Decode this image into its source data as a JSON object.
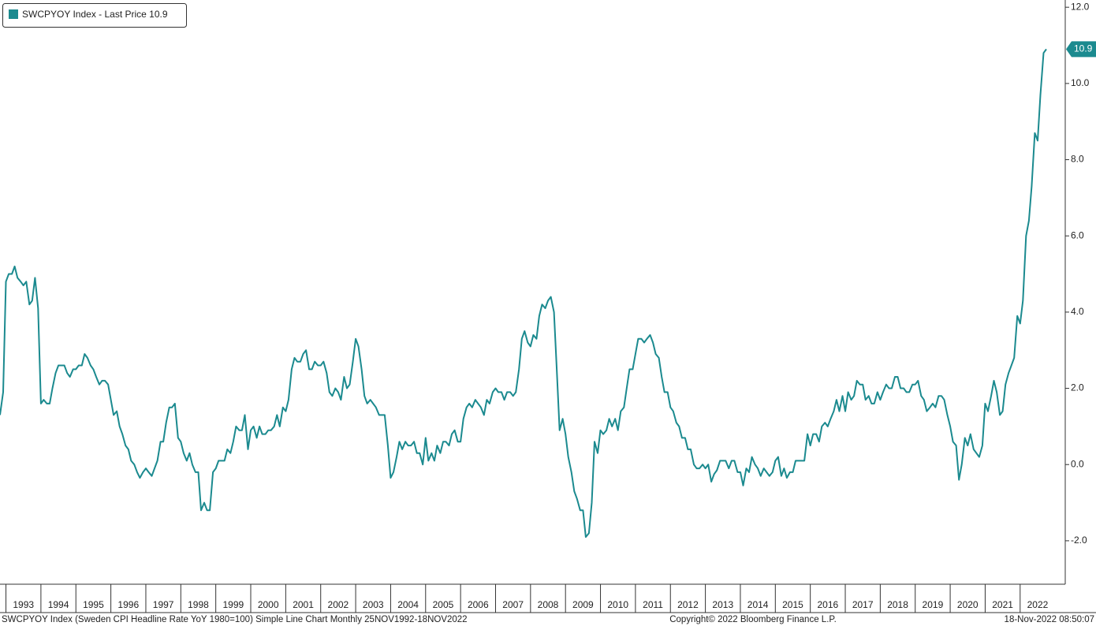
{
  "chart_data": {
    "type": "line",
    "series": [
      {
        "name": "SWCPYOY Index - Last Price 10.9",
        "color": "#1b8a8f",
        "x": [
          1992.83,
          1992.92,
          1993,
          1993.08,
          1993.17,
          1993.25,
          1993.33,
          1993.42,
          1993.5,
          1993.58,
          1993.67,
          1993.75,
          1993.83,
          1993.92,
          1994,
          1994.08,
          1994.17,
          1994.25,
          1994.33,
          1994.42,
          1994.5,
          1994.58,
          1994.67,
          1994.75,
          1994.83,
          1994.92,
          1995,
          1995.08,
          1995.17,
          1995.25,
          1995.33,
          1995.42,
          1995.5,
          1995.58,
          1995.67,
          1995.75,
          1995.83,
          1995.92,
          1996,
          1996.08,
          1996.17,
          1996.25,
          1996.33,
          1996.42,
          1996.5,
          1996.58,
          1996.67,
          1996.75,
          1996.83,
          1996.92,
          1997,
          1997.08,
          1997.17,
          1997.25,
          1997.33,
          1997.42,
          1997.5,
          1997.58,
          1997.67,
          1997.75,
          1997.83,
          1997.92,
          1998,
          1998.08,
          1998.17,
          1998.25,
          1998.33,
          1998.42,
          1998.5,
          1998.58,
          1998.67,
          1998.75,
          1998.83,
          1998.92,
          1999,
          1999.08,
          1999.17,
          1999.25,
          1999.33,
          1999.42,
          1999.5,
          1999.58,
          1999.67,
          1999.75,
          1999.83,
          1999.92,
          2000,
          2000.08,
          2000.17,
          2000.25,
          2000.33,
          2000.42,
          2000.5,
          2000.58,
          2000.67,
          2000.75,
          2000.83,
          2000.92,
          2001,
          2001.08,
          2001.17,
          2001.25,
          2001.33,
          2001.42,
          2001.5,
          2001.58,
          2001.67,
          2001.75,
          2001.83,
          2001.92,
          2002,
          2002.08,
          2002.17,
          2002.25,
          2002.33,
          2002.42,
          2002.5,
          2002.58,
          2002.67,
          2002.75,
          2002.83,
          2002.92,
          2003,
          2003.08,
          2003.17,
          2003.25,
          2003.33,
          2003.42,
          2003.5,
          2003.58,
          2003.67,
          2003.75,
          2003.83,
          2003.92,
          2004,
          2004.08,
          2004.17,
          2004.25,
          2004.33,
          2004.42,
          2004.5,
          2004.58,
          2004.67,
          2004.75,
          2004.83,
          2004.92,
          2005,
          2005.08,
          2005.17,
          2005.25,
          2005.33,
          2005.42,
          2005.5,
          2005.58,
          2005.67,
          2005.75,
          2005.83,
          2005.92,
          2006,
          2006.08,
          2006.17,
          2006.25,
          2006.33,
          2006.42,
          2006.5,
          2006.58,
          2006.67,
          2006.75,
          2006.83,
          2006.92,
          2007,
          2007.08,
          2007.17,
          2007.25,
          2007.33,
          2007.42,
          2007.5,
          2007.58,
          2007.67,
          2007.75,
          2007.83,
          2007.92,
          2008,
          2008.08,
          2008.17,
          2008.25,
          2008.33,
          2008.42,
          2008.5,
          2008.58,
          2008.67,
          2008.75,
          2008.83,
          2008.92,
          2009,
          2009.08,
          2009.17,
          2009.25,
          2009.33,
          2009.42,
          2009.5,
          2009.58,
          2009.67,
          2009.75,
          2009.83,
          2009.92,
          2010,
          2010.08,
          2010.17,
          2010.25,
          2010.33,
          2010.42,
          2010.5,
          2010.58,
          2010.67,
          2010.75,
          2010.83,
          2010.92,
          2011,
          2011.08,
          2011.17,
          2011.25,
          2011.33,
          2011.42,
          2011.5,
          2011.58,
          2011.67,
          2011.75,
          2011.83,
          2011.92,
          2012,
          2012.08,
          2012.17,
          2012.25,
          2012.33,
          2012.42,
          2012.5,
          2012.58,
          2012.67,
          2012.75,
          2012.83,
          2012.92,
          2013,
          2013.08,
          2013.17,
          2013.25,
          2013.33,
          2013.42,
          2013.5,
          2013.58,
          2013.67,
          2013.75,
          2013.83,
          2013.92,
          2014,
          2014.08,
          2014.17,
          2014.25,
          2014.33,
          2014.42,
          2014.5,
          2014.58,
          2014.67,
          2014.75,
          2014.83,
          2014.92,
          2015,
          2015.08,
          2015.17,
          2015.25,
          2015.33,
          2015.42,
          2015.5,
          2015.58,
          2015.67,
          2015.75,
          2015.83,
          2015.92,
          2016,
          2016.08,
          2016.17,
          2016.25,
          2016.33,
          2016.42,
          2016.5,
          2016.58,
          2016.67,
          2016.75,
          2016.83,
          2016.92,
          2017,
          2017.08,
          2017.17,
          2017.25,
          2017.33,
          2017.42,
          2017.5,
          2017.58,
          2017.67,
          2017.75,
          2017.83,
          2017.92,
          2018,
          2018.08,
          2018.17,
          2018.25,
          2018.33,
          2018.42,
          2018.5,
          2018.58,
          2018.67,
          2018.75,
          2018.83,
          2018.92,
          2019,
          2019.08,
          2019.17,
          2019.25,
          2019.33,
          2019.42,
          2019.5,
          2019.58,
          2019.67,
          2019.75,
          2019.83,
          2019.92,
          2020,
          2020.08,
          2020.17,
          2020.25,
          2020.33,
          2020.42,
          2020.5,
          2020.58,
          2020.67,
          2020.75,
          2020.83,
          2020.92,
          2021,
          2021.08,
          2021.17,
          2021.25,
          2021.33,
          2021.42,
          2021.5,
          2021.58,
          2021.67,
          2021.75,
          2021.83,
          2021.92,
          2022,
          2022.08,
          2022.17,
          2022.25,
          2022.33,
          2022.42,
          2022.5,
          2022.58,
          2022.67,
          2022.75
        ],
        "values": [
          1.3,
          1.9,
          4.8,
          5.0,
          5.0,
          5.2,
          4.9,
          4.8,
          4.7,
          4.8,
          4.2,
          4.3,
          4.9,
          4.1,
          1.6,
          1.7,
          1.6,
          1.6,
          2.0,
          2.4,
          2.6,
          2.6,
          2.6,
          2.4,
          2.3,
          2.5,
          2.5,
          2.6,
          2.6,
          2.9,
          2.8,
          2.6,
          2.5,
          2.3,
          2.1,
          2.2,
          2.2,
          2.1,
          1.7,
          1.3,
          1.4,
          1.0,
          0.8,
          0.5,
          0.4,
          0.1,
          0.0,
          -0.2,
          -0.35,
          -0.2,
          -0.1,
          -0.2,
          -0.3,
          -0.1,
          0.1,
          0.6,
          0.6,
          1.1,
          1.5,
          1.5,
          1.6,
          0.7,
          0.6,
          0.3,
          0.1,
          0.3,
          0.0,
          -0.2,
          -0.2,
          -1.2,
          -1.0,
          -1.2,
          -1.2,
          -0.2,
          -0.1,
          0.1,
          0.1,
          0.1,
          0.4,
          0.3,
          0.6,
          1.0,
          0.9,
          0.9,
          1.3,
          0.4,
          0.9,
          1.0,
          0.7,
          1.0,
          0.8,
          0.8,
          0.9,
          0.9,
          1.0,
          1.3,
          1.0,
          1.5,
          1.4,
          1.7,
          2.5,
          2.8,
          2.7,
          2.7,
          2.9,
          3.0,
          2.5,
          2.5,
          2.7,
          2.6,
          2.6,
          2.7,
          2.4,
          1.9,
          1.8,
          2.0,
          1.9,
          1.7,
          2.3,
          2.0,
          2.1,
          2.7,
          3.3,
          3.1,
          2.5,
          1.8,
          1.6,
          1.7,
          1.6,
          1.5,
          1.3,
          1.3,
          1.3,
          0.5,
          -0.35,
          -0.2,
          0.2,
          0.6,
          0.4,
          0.6,
          0.5,
          0.5,
          0.6,
          0.3,
          0.3,
          0.0,
          0.7,
          0.1,
          0.3,
          0.1,
          0.5,
          0.3,
          0.6,
          0.6,
          0.5,
          0.8,
          0.9,
          0.6,
          0.6,
          1.2,
          1.5,
          1.6,
          1.5,
          1.7,
          1.6,
          1.5,
          1.3,
          1.7,
          1.6,
          1.9,
          2.0,
          1.9,
          1.9,
          1.7,
          1.9,
          1.9,
          1.8,
          1.9,
          2.5,
          3.3,
          3.5,
          3.2,
          3.1,
          3.4,
          3.3,
          3.9,
          4.2,
          4.1,
          4.3,
          4.4,
          4.0,
          2.5,
          0.9,
          1.2,
          0.8,
          0.2,
          -0.2,
          -0.7,
          -0.9,
          -1.2,
          -1.2,
          -1.9,
          -1.8,
          -1.0,
          0.6,
          0.3,
          0.9,
          0.8,
          0.9,
          1.2,
          1.0,
          1.2,
          0.9,
          1.4,
          1.5,
          2.0,
          2.5,
          2.5,
          2.9,
          3.3,
          3.3,
          3.2,
          3.3,
          3.4,
          3.2,
          2.9,
          2.8,
          2.3,
          1.9,
          1.9,
          1.5,
          1.4,
          1.1,
          1.0,
          0.7,
          0.7,
          0.4,
          0.4,
          0.0,
          -0.1,
          -0.1,
          0.0,
          -0.1,
          0.0,
          -0.45,
          -0.25,
          -0.15,
          0.1,
          0.1,
          0.1,
          -0.1,
          0.1,
          0.1,
          -0.2,
          -0.2,
          -0.55,
          -0.1,
          -0.2,
          0.2,
          0.0,
          -0.1,
          -0.3,
          -0.1,
          -0.2,
          -0.3,
          -0.2,
          0.1,
          0.2,
          -0.3,
          -0.1,
          -0.35,
          -0.2,
          -0.2,
          0.1,
          0.1,
          0.1,
          0.1,
          0.8,
          0.5,
          0.8,
          0.8,
          0.6,
          1.0,
          1.1,
          1.0,
          1.2,
          1.4,
          1.7,
          1.4,
          1.8,
          1.4,
          1.9,
          1.7,
          1.8,
          2.2,
          2.1,
          2.1,
          1.7,
          1.8,
          1.6,
          1.6,
          1.9,
          1.7,
          1.9,
          2.1,
          2.0,
          2.0,
          2.3,
          2.3,
          2.0,
          2.0,
          1.9,
          1.9,
          2.1,
          2.1,
          2.2,
          1.8,
          1.7,
          1.4,
          1.5,
          1.6,
          1.5,
          1.8,
          1.8,
          1.7,
          1.3,
          1.0,
          0.6,
          0.5,
          -0.4,
          0.0,
          0.7,
          0.5,
          0.8,
          0.4,
          0.3,
          0.2,
          0.5,
          1.6,
          1.4,
          1.8,
          2.2,
          1.9,
          1.3,
          1.4,
          2.1,
          2.4,
          2.6,
          2.8,
          3.9,
          3.7,
          4.3,
          6.0,
          6.4,
          7.3,
          8.7,
          8.5,
          9.7,
          10.8,
          10.9
        ]
      }
    ],
    "last_price_label": "10.9",
    "xlim": [
      1992.83,
      2023.29
    ],
    "xticks": [
      1993,
      1994,
      1995,
      1996,
      1997,
      1998,
      1999,
      2000,
      2001,
      2002,
      2003,
      2004,
      2005,
      2006,
      2007,
      2008,
      2009,
      2010,
      2011,
      2012,
      2013,
      2014,
      2015,
      2016,
      2017,
      2018,
      2019,
      2020,
      2021,
      2022
    ],
    "ylim": [
      -3.14,
      12.19
    ],
    "yticks": [
      {
        "value": -2,
        "label": "-2.0"
      },
      {
        "value": 0,
        "label": "0.0"
      },
      {
        "value": 2,
        "label": "2.0"
      },
      {
        "value": 4,
        "label": "4.0"
      },
      {
        "value": 6,
        "label": "6.0"
      },
      {
        "value": 8,
        "label": "8.0"
      },
      {
        "value": 10,
        "label": "10.0"
      },
      {
        "value": 12,
        "label": "12.0"
      }
    ],
    "footer_left": "SWCPYOY Index (Sweden CPI Headline Rate YoY 1980=100) Simple Line Chart  Monthly 25NOV1992-18NOV2022",
    "footer_center": "Copyright© 2022 Bloomberg Finance L.P.",
    "footer_right": "18-Nov-2022 08:50:07"
  }
}
